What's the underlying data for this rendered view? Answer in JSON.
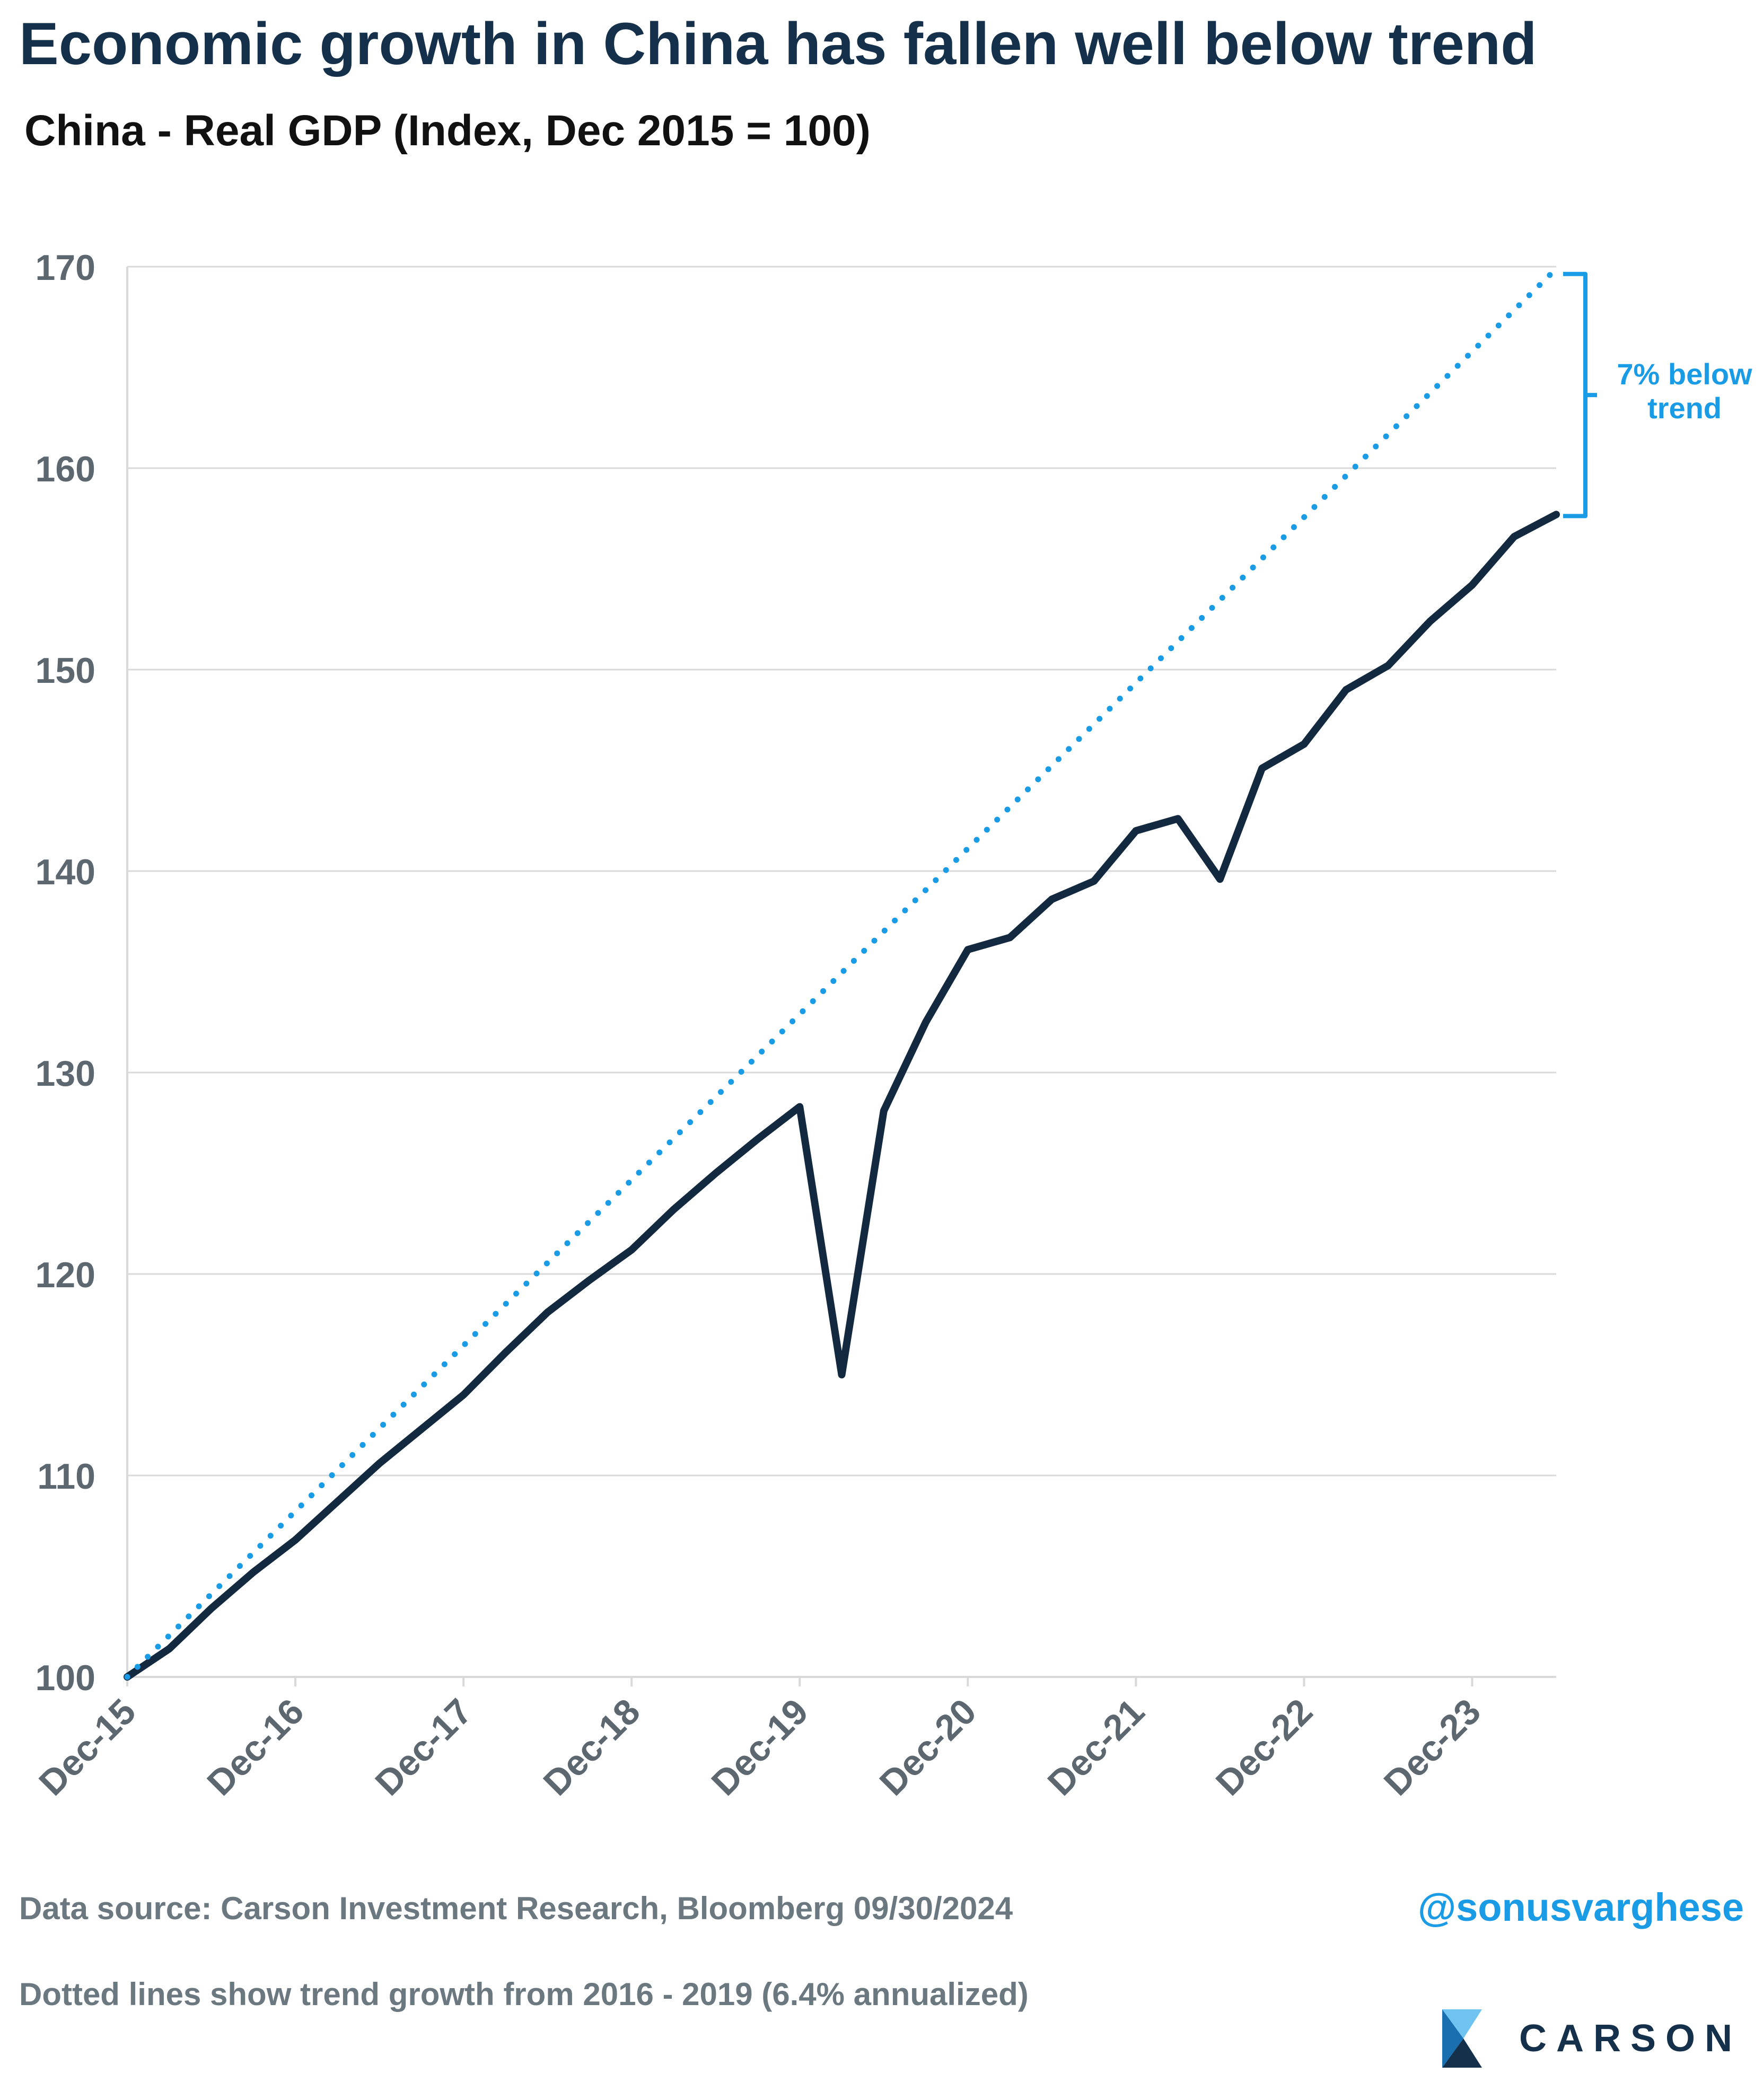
{
  "header": {
    "title": "Economic growth in China has fallen well below trend",
    "subtitle": "China - Real GDP (Index, Dec 2015 = 100)"
  },
  "footer": {
    "source": "Data source: Carson Investment Research, Bloomberg   09/30/2024",
    "note": "Dotted lines show trend growth from 2016 - 2019 (6.4% annualized)",
    "handle": "@sonusvarghese",
    "brand": "CARSON"
  },
  "colors": {
    "actual_line": "#12293f",
    "trend_line": "#1a9be6",
    "annotation": "#1a9be6",
    "gridline": "#d9d9d9",
    "tick_text": "#5c6770"
  },
  "chart_data": {
    "type": "line",
    "title": "China - Real GDP (Index, Dec 2015 = 100)",
    "xlabel": "",
    "ylabel": "",
    "ylim": [
      100,
      170
    ],
    "yticks": [
      100,
      110,
      120,
      130,
      140,
      150,
      160,
      170
    ],
    "grid": true,
    "x_tick_labels": [
      "Dec-15",
      "Dec-16",
      "Dec-17",
      "Dec-18",
      "Dec-19",
      "Dec-20",
      "Dec-21",
      "Dec-22",
      "Dec-23"
    ],
    "x_tick_positions": [
      "2015-12",
      "2016-12",
      "2017-12",
      "2018-12",
      "2019-12",
      "2020-12",
      "2021-12",
      "2022-12",
      "2023-12"
    ],
    "xlim": [
      "2015-12",
      "2024-06"
    ],
    "series": [
      {
        "style": "solid",
        "x": [
          "2015-12",
          "2016-03",
          "2016-06",
          "2016-09",
          "2016-12",
          "2017-03",
          "2017-06",
          "2017-09",
          "2017-12",
          "2018-03",
          "2018-06",
          "2018-09",
          "2018-12",
          "2019-03",
          "2019-06",
          "2019-09",
          "2019-12",
          "2020-03",
          "2020-06",
          "2020-09",
          "2020-12",
          "2021-03",
          "2021-06",
          "2021-09",
          "2021-12",
          "2022-03",
          "2022-06",
          "2022-09",
          "2022-12",
          "2023-03",
          "2023-06",
          "2023-09",
          "2023-12",
          "2024-03",
          "2024-06"
        ],
        "values": [
          100.0,
          101.4,
          103.4,
          105.2,
          106.8,
          108.7,
          110.6,
          112.3,
          114.0,
          116.1,
          118.1,
          119.7,
          121.2,
          123.2,
          125.0,
          126.7,
          128.3,
          115.0,
          128.1,
          132.5,
          136.1,
          136.7,
          138.6,
          139.5,
          142.0,
          142.6,
          139.6,
          145.1,
          146.3,
          149.0,
          150.2,
          152.4,
          154.2,
          156.6,
          157.7
        ]
      },
      {
        "style": "dotted",
        "x": [
          "2015-12",
          "2024-06"
        ],
        "values": [
          100.0,
          169.9
        ]
      }
    ],
    "annotations": [
      {
        "text_lines": [
          "7% below",
          "trend"
        ],
        "from": 157.7,
        "to": 169.9
      }
    ]
  }
}
